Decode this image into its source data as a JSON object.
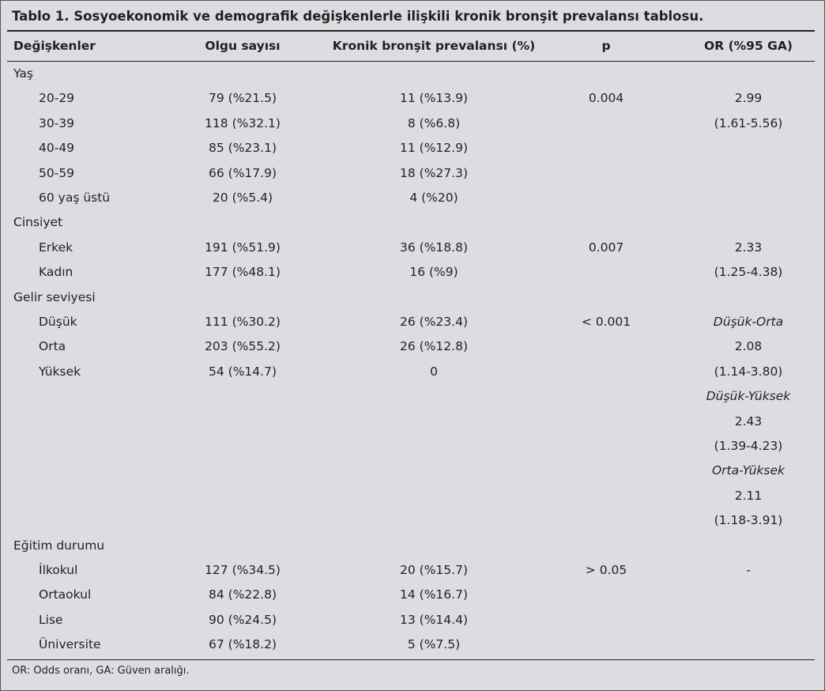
{
  "title": "Tablo 1. Sosyoekonomik ve demografik değişkenlerle ilişkili kronik bronşit prevalansı tablosu.",
  "headers": [
    "Değişkenler",
    "Olgu sayısı",
    "Kronik bronşit prevalansı (%)",
    "p",
    "OR (%95 GA)"
  ],
  "rows": [
    {
      "label": "Yaş",
      "group": true,
      "olgu": "",
      "kronik": "",
      "p": "",
      "or": ""
    },
    {
      "label": "20-29",
      "olgu": "79 (%21.5)",
      "kronik": "11 (%13.9)",
      "p": "0.004",
      "or": "2.99"
    },
    {
      "label": "30-39",
      "olgu": "118 (%32.1)",
      "kronik": "8 (%6.8)",
      "p": "",
      "or": "(1.61-5.56)"
    },
    {
      "label": "40-49",
      "olgu": "85 (%23.1)",
      "kronik": "11 (%12.9)",
      "p": "",
      "or": ""
    },
    {
      "label": "50-59",
      "olgu": "66 (%17.9)",
      "kronik": "18 (%27.3)",
      "p": "",
      "or": ""
    },
    {
      "label": "60 yaş üstü",
      "olgu": "20 (%5.4)",
      "kronik": "4 (%20)",
      "p": "",
      "or": ""
    },
    {
      "label": "Cinsiyet",
      "group": true,
      "olgu": "",
      "kronik": "",
      "p": "",
      "or": ""
    },
    {
      "label": "Erkek",
      "olgu": "191 (%51.9)",
      "kronik": "36 (%18.8)",
      "p": "0.007",
      "or": "2.33"
    },
    {
      "label": "Kadın",
      "olgu": "177 (%48.1)",
      "kronik": "16 (%9)",
      "p": "",
      "or": "(1.25-4.38)"
    },
    {
      "label": "Gelir seviyesi",
      "group": true,
      "olgu": "",
      "kronik": "",
      "p": "",
      "or": ""
    },
    {
      "label": "Düşük",
      "olgu": "111 (%30.2)",
      "kronik": "26 (%23.4)",
      "p": "< 0.001",
      "or": "Düşük-Orta",
      "orItalic": true
    },
    {
      "label": "Orta",
      "olgu": "203 (%55.2)",
      "kronik": "26 (%12.8)",
      "p": "",
      "or": "2.08"
    },
    {
      "label": "Yüksek",
      "olgu": "54 (%14.7)",
      "kronik": "0",
      "p": "",
      "or": "(1.14-3.80)"
    },
    {
      "label": "",
      "olgu": "",
      "kronik": "",
      "p": "",
      "or": "Düşük-Yüksek",
      "orItalic": true
    },
    {
      "label": "",
      "olgu": "",
      "kronik": "",
      "p": "",
      "or": "2.43"
    },
    {
      "label": "",
      "olgu": "",
      "kronik": "",
      "p": "",
      "or": "(1.39-4.23)"
    },
    {
      "label": "",
      "olgu": "",
      "kronik": "",
      "p": "",
      "or": "Orta-Yüksek",
      "orItalic": true
    },
    {
      "label": "",
      "olgu": "",
      "kronik": "",
      "p": "",
      "or": "2.11"
    },
    {
      "label": "",
      "olgu": "",
      "kronik": "",
      "p": "",
      "or": "(1.18-3.91)"
    },
    {
      "label": "Eğitim durumu",
      "group": true,
      "olgu": "",
      "kronik": "",
      "p": "",
      "or": ""
    },
    {
      "label": "İlkokul",
      "olgu": "127 (%34.5)",
      "kronik": "20 (%15.7)",
      "p": "> 0.05",
      "or": "-"
    },
    {
      "label": "Ortaokul",
      "olgu": "84 (%22.8)",
      "kronik": "14 (%16.7)",
      "p": "",
      "or": ""
    },
    {
      "label": "Lise",
      "olgu": "90 (%24.5)",
      "kronik": "13 (%14.4)",
      "p": "",
      "or": ""
    },
    {
      "label": "Üniversite",
      "olgu": "67 (%18.2)",
      "kronik": "5 (%7.5)",
      "p": "",
      "or": ""
    }
  ],
  "footnote": "OR: Odds oranı, GA: Güven aralığı."
}
